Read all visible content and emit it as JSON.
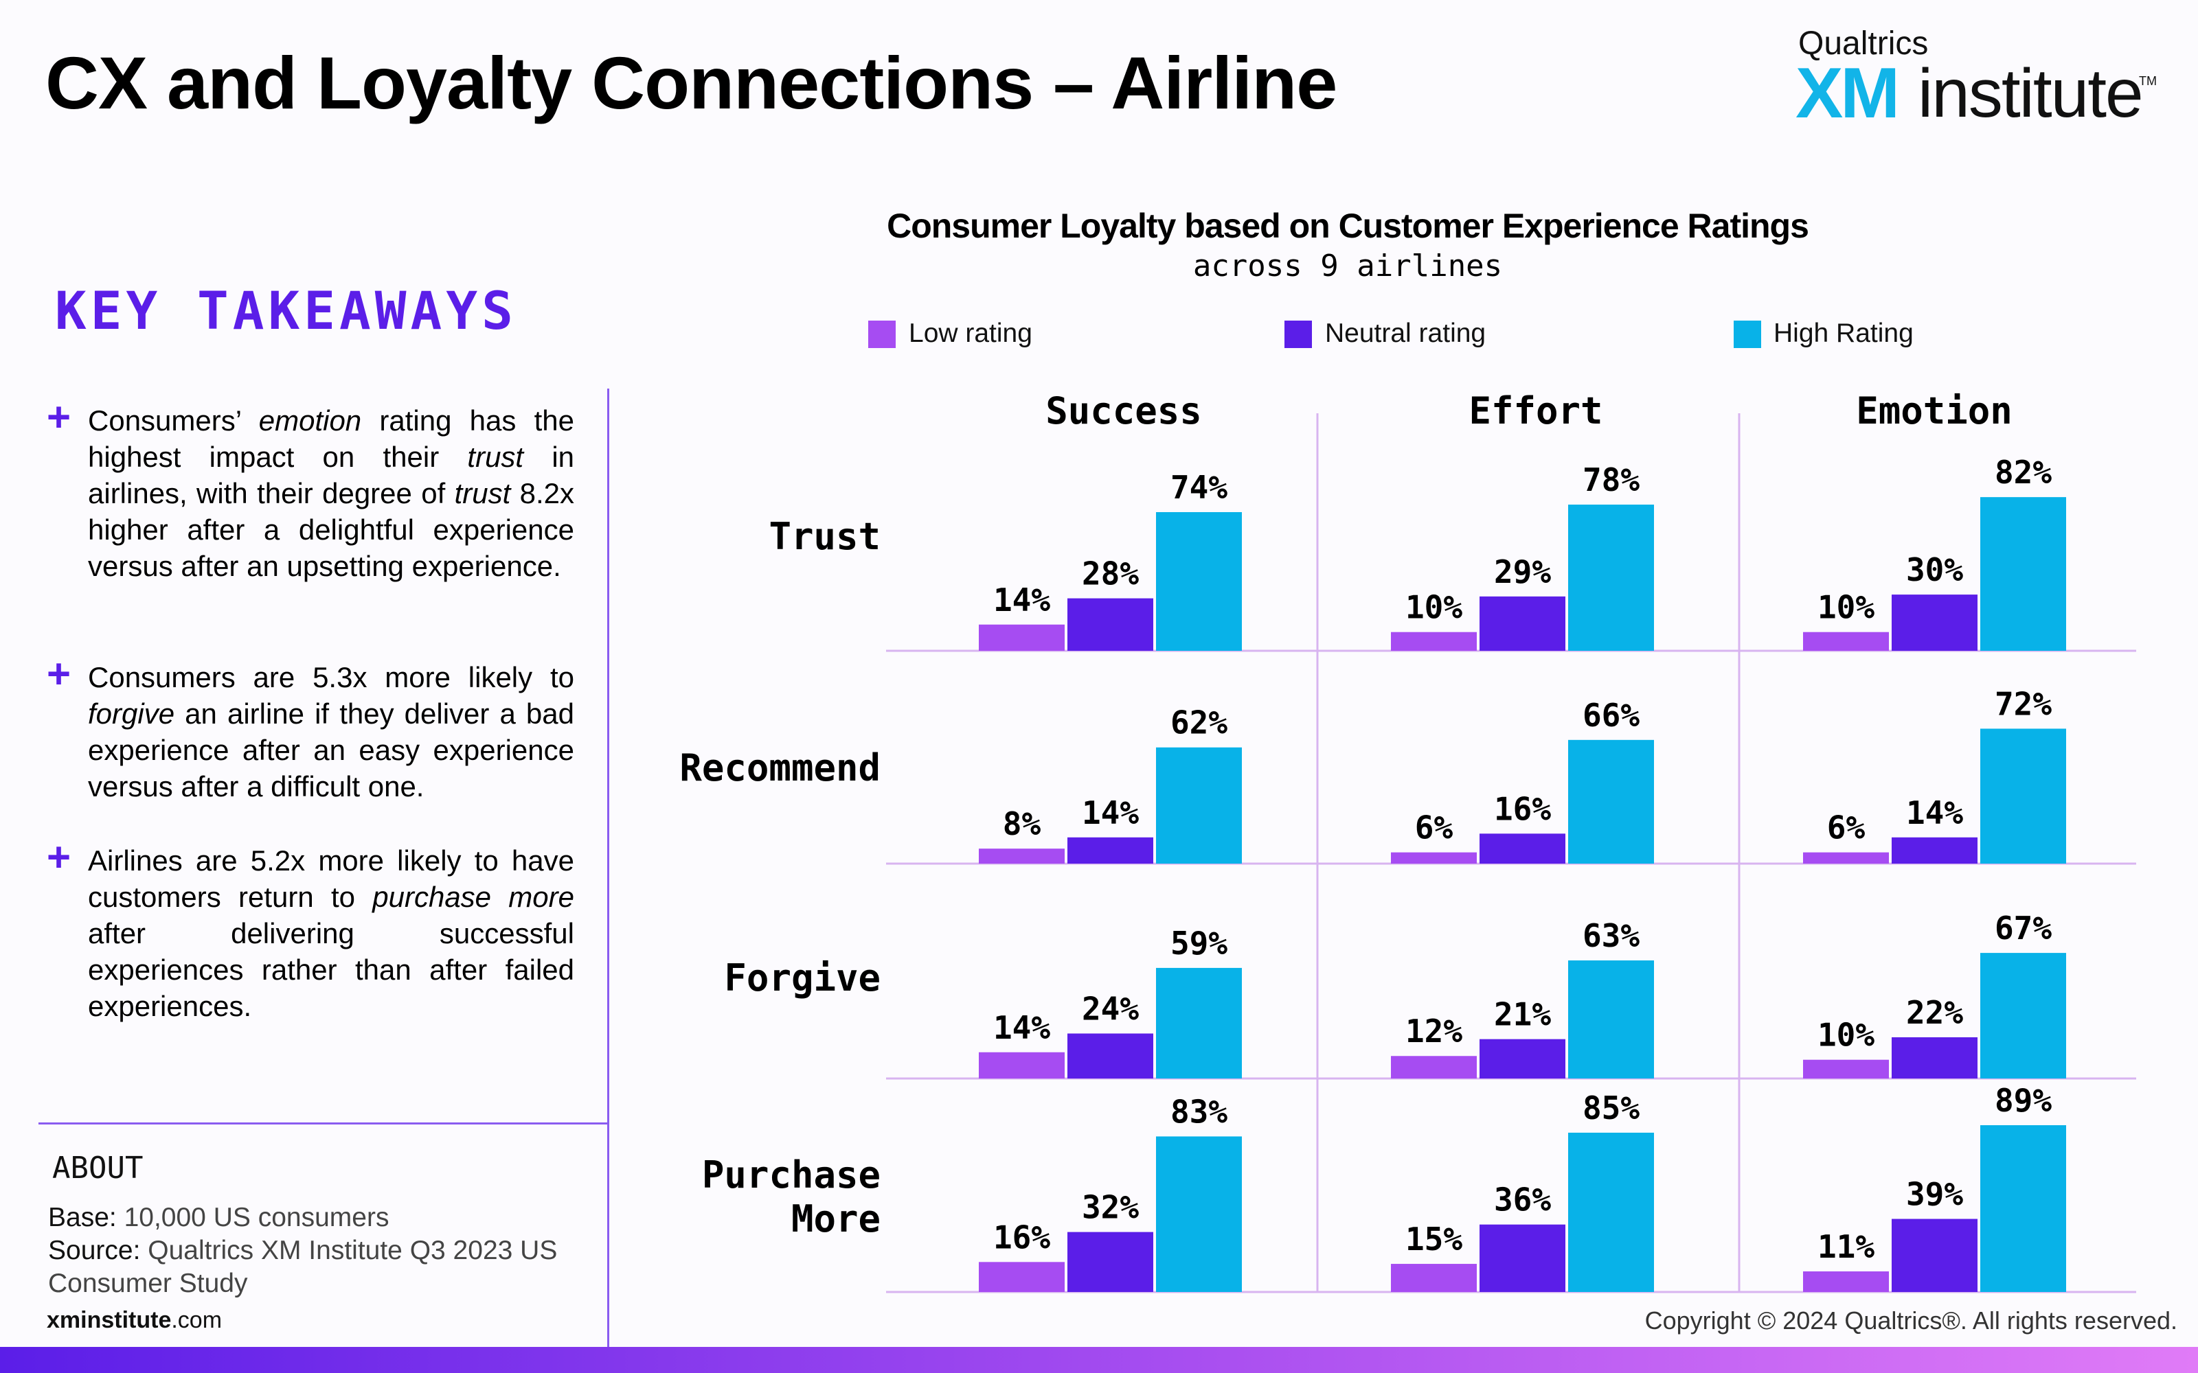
{
  "page": {
    "title": "CX and Loyalty Connections – Airline",
    "logo": {
      "top": "Qualtrics",
      "xm": "XM",
      "rest": "institute",
      "tm": "TM"
    },
    "key_takeaways_title": "KEY TAKEAWAYS",
    "takeaways": [
      {
        "plus": "+",
        "html": "Consumers’ <i>emotion</i> rating has the highest impact on their <i>trust</i> in airlines, with their degree of <i>trust</i> 8.2x higher after a delightful experience versus after an upsetting experience."
      },
      {
        "plus": "+",
        "html": "Consumers are 5.3x more likely to <i>forgive</i> an airline if they deliver a bad experience after an easy experience versus after a difficult one."
      },
      {
        "plus": "+",
        "html": "Airlines are 5.2x more likely to have customers return to <i>purchase more</i> after delivering successful experiences rather than after failed experiences."
      }
    ],
    "about": {
      "heading": "ABOUT",
      "base_label": "Base:",
      "base_value": "10,000 US consumers",
      "source_label": "Source:",
      "source_value_1": "Qualtrics XM Institute Q3 2023 US",
      "source_value_2": "Consumer Study"
    },
    "site_bold": "xminstitute",
    "site_rest": ".com",
    "copyright": "Copyright © 2024 Qualtrics®. All rights reserved."
  },
  "colors": {
    "accent": "#5b1ee8",
    "low": "#a64cf2",
    "neutral": "#5b1ee8",
    "high": "#08b2e8",
    "grid": "#d8b4f0"
  },
  "chart_data": {
    "type": "bar",
    "title": "Consumer Loyalty based on Customer Experience Ratings",
    "subtitle": "across 9 airlines",
    "legend": [
      "Low rating",
      "Neutral rating",
      "High Rating"
    ],
    "legend_position": "top",
    "columns": [
      "Success",
      "Effort",
      "Emotion"
    ],
    "rows": [
      "Trust",
      "Recommend",
      "Forgive",
      "Purchase More"
    ],
    "row_label_lines": [
      [
        "Trust"
      ],
      [
        "Recommend"
      ],
      [
        "Forgive"
      ],
      [
        "Purchase",
        "More"
      ]
    ],
    "value_suffix": "%",
    "values": [
      [
        [
          14,
          28,
          74
        ],
        [
          10,
          29,
          78
        ],
        [
          10,
          30,
          82
        ]
      ],
      [
        [
          8,
          14,
          62
        ],
        [
          6,
          16,
          66
        ],
        [
          6,
          14,
          72
        ]
      ],
      [
        [
          14,
          24,
          59
        ],
        [
          12,
          21,
          63
        ],
        [
          10,
          22,
          67
        ]
      ],
      [
        [
          16,
          32,
          83
        ],
        [
          15,
          36,
          85
        ],
        [
          11,
          39,
          89
        ]
      ]
    ],
    "ylim": [
      0,
      100
    ]
  }
}
